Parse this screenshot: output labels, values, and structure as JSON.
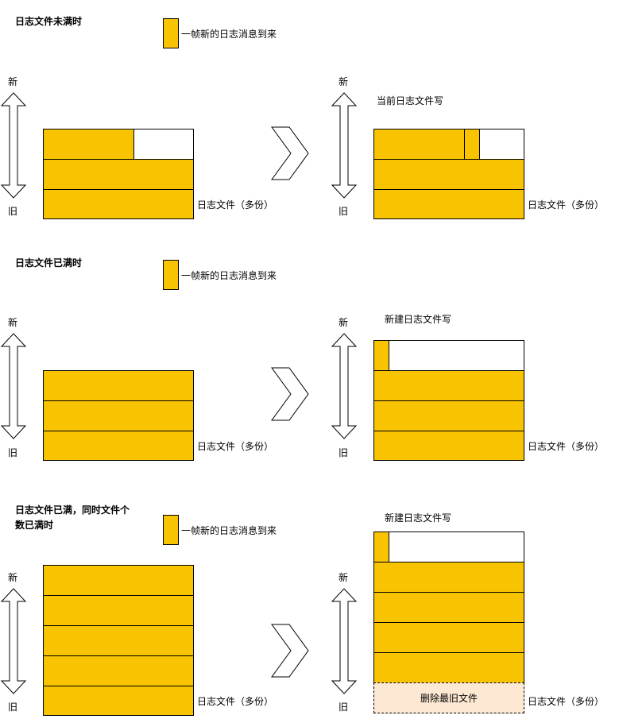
{
  "legend_label": "一帧新的日志消息到来",
  "new_label": "新",
  "old_label": "旧",
  "files_label": "日志文件（多份）",
  "sections": [
    {
      "title": "日志文件未满时"
    },
    {
      "title": "日志文件已满时",
      "right_caption": "新建日志文件写"
    },
    {
      "title_line1": "日志文件已满，同时文件个",
      "title_line2": "数已满时",
      "right_caption": "新建日志文件写",
      "delete_label": "删除最旧文件"
    }
  ],
  "section1_right_caption": "当前日志文件写",
  "colors": {
    "fill": "#f8c300",
    "delete_fill": "#fde9d3"
  }
}
